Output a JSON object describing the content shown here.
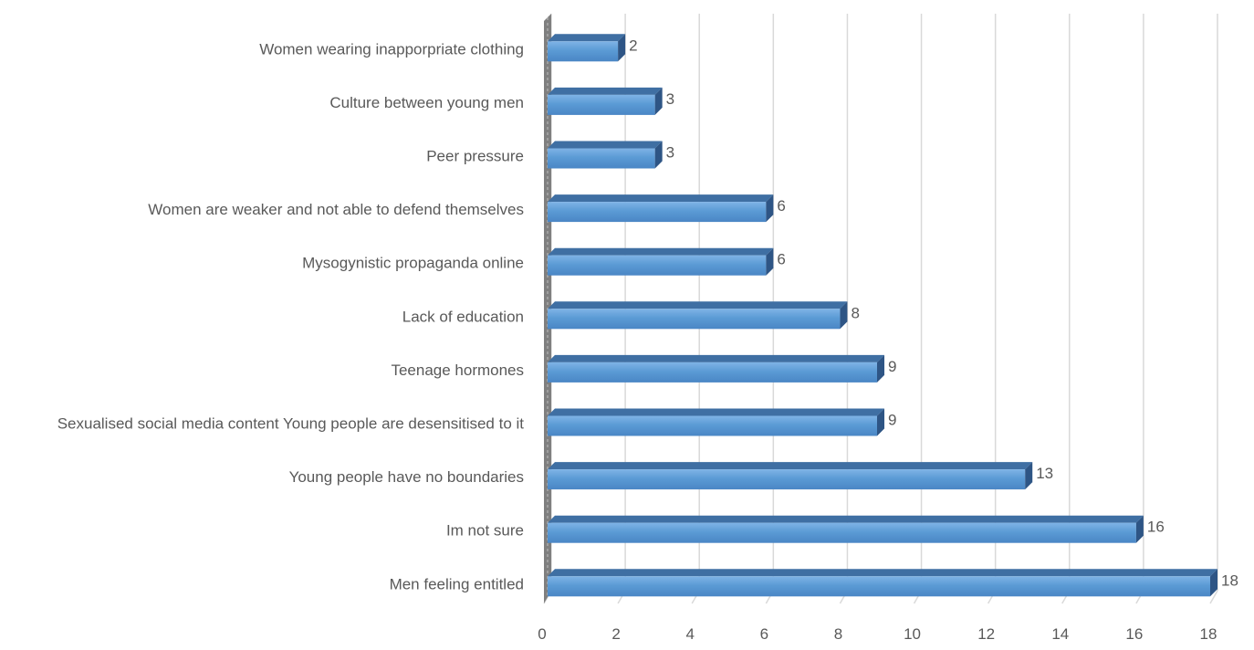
{
  "chart_data": {
    "type": "bar",
    "orientation": "horizontal",
    "categories": [
      "Men feeling entitled",
      "Im not sure",
      "Young people have no boundaries",
      "Sexualised social media content Young people are desensitised to it",
      "Teenage hormones",
      "Lack of education",
      "Mysogynistic propaganda online",
      "Women are weaker and not able to defend themselves",
      "Peer pressure",
      "Culture between young men",
      "Women wearing inapporpriate clothing"
    ],
    "values": [
      18,
      16,
      13,
      9,
      9,
      8,
      6,
      6,
      3,
      3,
      2
    ],
    "data_labels": [
      "18",
      "16",
      "13",
      "9",
      "9",
      "8",
      "6",
      "6",
      "3",
      "3",
      "2"
    ],
    "xticks": [
      "0",
      "2",
      "4",
      "6",
      "8",
      "10",
      "12",
      "14",
      "16",
      "18"
    ],
    "xlim": [
      0,
      18
    ],
    "grid": true,
    "legend": "none",
    "title": "",
    "xlabel": "",
    "ylabel": "",
    "colors": {
      "bar_front": "#5b9bd5",
      "bar_top": "#3f6fa3",
      "bar_side": "#2e5585",
      "gridline": "#d9d9d9",
      "text": "#595959",
      "wall": "#7f7f7f"
    }
  }
}
